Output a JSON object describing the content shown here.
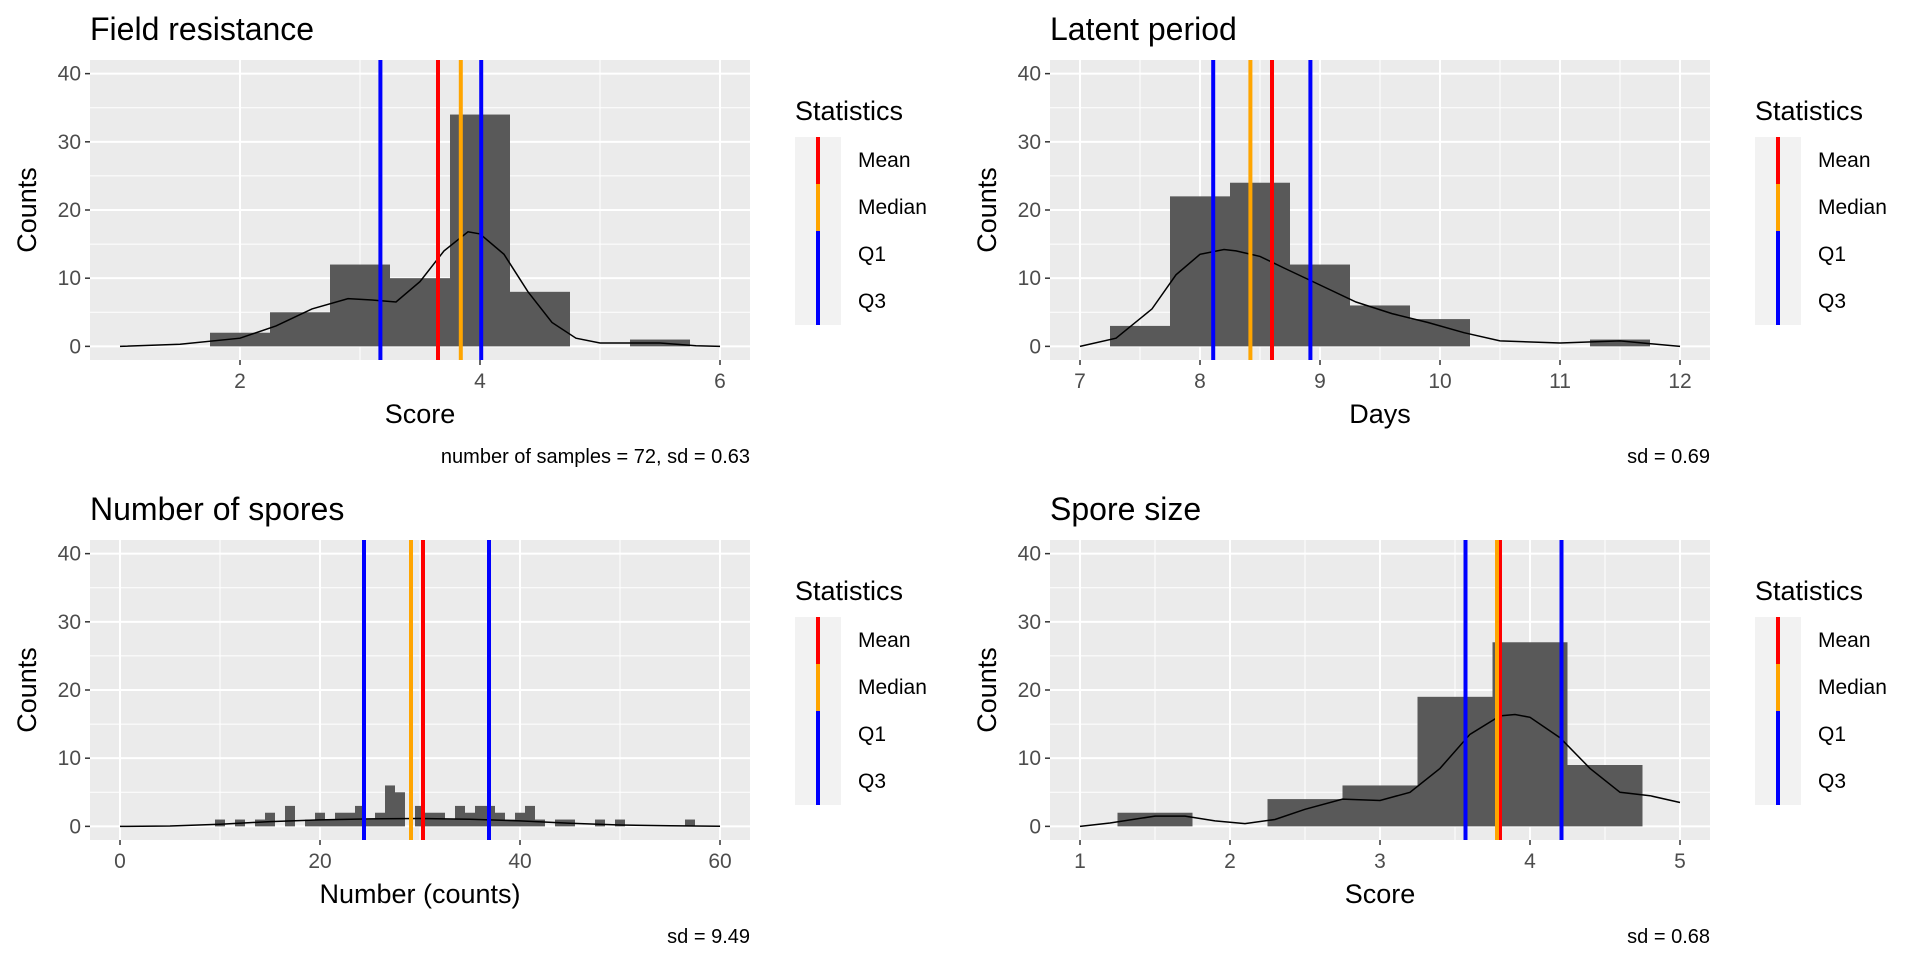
{
  "colors": {
    "panel_bg": "#ebebeb",
    "grid": "#ffffff",
    "bar": "#595959",
    "density": "#000000",
    "mean": "#ff0000",
    "median": "#ffa500",
    "q1": "#0000ff",
    "q3": "#0000ff"
  },
  "chart_data": [
    {
      "type": "histogram",
      "title": "Field resistance",
      "xlabel": "Score",
      "ylabel": "Counts",
      "caption": "number of samples = 72, sd = 0.63",
      "xlim": [
        0.75,
        6.25
      ],
      "ylim": [
        -2,
        42
      ],
      "xticks": [
        2,
        4,
        6
      ],
      "yticks": [
        0,
        10,
        20,
        30,
        40
      ],
      "bins": [
        {
          "x0": 1.75,
          "x1": 2.25,
          "count": 2
        },
        {
          "x0": 2.25,
          "x1": 2.75,
          "count": 5
        },
        {
          "x0": 2.75,
          "x1": 3.25,
          "count": 12
        },
        {
          "x0": 3.25,
          "x1": 3.75,
          "count": 10
        },
        {
          "x0": 3.75,
          "x1": 4.25,
          "count": 34
        },
        {
          "x0": 4.25,
          "x1": 4.75,
          "count": 8
        },
        {
          "x0": 5.25,
          "x1": 5.75,
          "count": 1
        }
      ],
      "density": {
        "x": [
          1,
          1.5,
          2,
          2.3,
          2.6,
          2.9,
          3.1,
          3.3,
          3.5,
          3.7,
          3.9,
          4.0,
          4.2,
          4.4,
          4.6,
          4.8,
          5.0,
          5.2,
          5.5,
          5.8,
          6
        ],
        "y": [
          0,
          0.3,
          1.2,
          3.0,
          5.5,
          7.0,
          6.8,
          6.5,
          9.5,
          14.0,
          16.8,
          16.5,
          13.5,
          8.0,
          3.5,
          1.2,
          0.5,
          0.5,
          0.5,
          0.1,
          0
        ]
      },
      "statistics": [
        {
          "name": "Mean",
          "value": 3.65,
          "color": "#ff0000"
        },
        {
          "name": "Median",
          "value": 3.84,
          "color": "#ffa500"
        },
        {
          "name": "Q1",
          "value": 3.17,
          "color": "#0000ff"
        },
        {
          "name": "Q3",
          "value": 4.01,
          "color": "#0000ff"
        }
      ],
      "legend": {
        "title": "Statistics",
        "entries": [
          "Mean",
          "Median",
          "Q1",
          "Q3"
        ]
      }
    },
    {
      "type": "histogram",
      "title": "Latent period",
      "xlabel": "Days",
      "ylabel": "Counts",
      "caption": "sd = 0.69",
      "xlim": [
        6.75,
        12.25
      ],
      "ylim": [
        -2,
        42
      ],
      "xticks": [
        7,
        8,
        9,
        10,
        11,
        12
      ],
      "yticks": [
        0,
        10,
        20,
        30,
        40
      ],
      "bins": [
        {
          "x0": 7.25,
          "x1": 7.75,
          "count": 3
        },
        {
          "x0": 7.75,
          "x1": 8.25,
          "count": 22
        },
        {
          "x0": 8.25,
          "x1": 8.75,
          "count": 24
        },
        {
          "x0": 8.75,
          "x1": 9.25,
          "count": 12
        },
        {
          "x0": 9.25,
          "x1": 9.75,
          "count": 6
        },
        {
          "x0": 9.75,
          "x1": 10.25,
          "count": 4
        },
        {
          "x0": 11.25,
          "x1": 11.75,
          "count": 1
        }
      ],
      "density": {
        "x": [
          7,
          7.3,
          7.6,
          7.8,
          8.0,
          8.2,
          8.3,
          8.5,
          8.7,
          9.0,
          9.3,
          9.6,
          9.9,
          10.2,
          10.5,
          11,
          11.5,
          12
        ],
        "y": [
          0,
          1.2,
          5.5,
          10.5,
          13.5,
          14.2,
          14.0,
          13.2,
          11.5,
          9.0,
          6.5,
          4.8,
          3.5,
          2.0,
          0.8,
          0.5,
          0.8,
          0
        ]
      },
      "statistics": [
        {
          "name": "Mean",
          "value": 8.6,
          "color": "#ff0000"
        },
        {
          "name": "Median",
          "value": 8.42,
          "color": "#ffa500"
        },
        {
          "name": "Q1",
          "value": 8.11,
          "color": "#0000ff"
        },
        {
          "name": "Q3",
          "value": 8.92,
          "color": "#0000ff"
        }
      ],
      "legend": {
        "title": "Statistics",
        "entries": [
          "Mean",
          "Median",
          "Q1",
          "Q3"
        ]
      }
    },
    {
      "type": "histogram",
      "title": "Number of spores",
      "xlabel": "Number (counts)",
      "ylabel": "Counts",
      "caption": "sd = 9.49",
      "xlim": [
        -3,
        63
      ],
      "ylim": [
        -2,
        42
      ],
      "xticks": [
        0,
        20,
        40,
        60
      ],
      "yticks": [
        0,
        10,
        20,
        30,
        40
      ],
      "bins": [
        {
          "x0": 9.5,
          "x1": 10.5,
          "count": 1
        },
        {
          "x0": 11.5,
          "x1": 12.5,
          "count": 1
        },
        {
          "x0": 13.5,
          "x1": 14.5,
          "count": 1
        },
        {
          "x0": 14.5,
          "x1": 15.5,
          "count": 2
        },
        {
          "x0": 16.5,
          "x1": 17.5,
          "count": 3
        },
        {
          "x0": 18.5,
          "x1": 19.5,
          "count": 1
        },
        {
          "x0": 19.5,
          "x1": 20.5,
          "count": 2
        },
        {
          "x0": 20.5,
          "x1": 21.5,
          "count": 1
        },
        {
          "x0": 21.5,
          "x1": 22.5,
          "count": 2
        },
        {
          "x0": 22.5,
          "x1": 23.5,
          "count": 2
        },
        {
          "x0": 23.5,
          "x1": 24.5,
          "count": 3
        },
        {
          "x0": 24.5,
          "x1": 25.5,
          "count": 1
        },
        {
          "x0": 25.5,
          "x1": 26.5,
          "count": 2
        },
        {
          "x0": 26.5,
          "x1": 27.5,
          "count": 6
        },
        {
          "x0": 27.5,
          "x1": 28.5,
          "count": 5
        },
        {
          "x0": 29.5,
          "x1": 30.5,
          "count": 3
        },
        {
          "x0": 30.5,
          "x1": 31.5,
          "count": 2
        },
        {
          "x0": 31.5,
          "x1": 32.5,
          "count": 2
        },
        {
          "x0": 32.5,
          "x1": 33.5,
          "count": 1
        },
        {
          "x0": 33.5,
          "x1": 34.5,
          "count": 3
        },
        {
          "x0": 34.5,
          "x1": 35.5,
          "count": 2
        },
        {
          "x0": 35.5,
          "x1": 36.5,
          "count": 3
        },
        {
          "x0": 36.5,
          "x1": 37.5,
          "count": 3
        },
        {
          "x0": 37.5,
          "x1": 38.5,
          "count": 2
        },
        {
          "x0": 38.5,
          "x1": 39.5,
          "count": 1
        },
        {
          "x0": 39.5,
          "x1": 40.5,
          "count": 2
        },
        {
          "x0": 40.5,
          "x1": 41.5,
          "count": 3
        },
        {
          "x0": 41.5,
          "x1": 42.5,
          "count": 1
        },
        {
          "x0": 43.5,
          "x1": 44.5,
          "count": 1
        },
        {
          "x0": 44.5,
          "x1": 45.5,
          "count": 1
        },
        {
          "x0": 47.5,
          "x1": 48.5,
          "count": 1
        },
        {
          "x0": 49.5,
          "x1": 50.5,
          "count": 1
        },
        {
          "x0": 56.5,
          "x1": 57.5,
          "count": 1
        }
      ],
      "density": {
        "x": [
          0,
          5,
          10,
          15,
          20,
          25,
          30,
          35,
          40,
          45,
          50,
          55,
          60
        ],
        "y": [
          0,
          0.05,
          0.3,
          0.7,
          0.95,
          1.1,
          1.15,
          1.05,
          0.8,
          0.45,
          0.2,
          0.08,
          0.02
        ]
      },
      "statistics": [
        {
          "name": "Mean",
          "value": 30.3,
          "color": "#ff0000"
        },
        {
          "name": "Median",
          "value": 29.1,
          "color": "#ffa500"
        },
        {
          "name": "Q1",
          "value": 24.4,
          "color": "#0000ff"
        },
        {
          "name": "Q3",
          "value": 36.9,
          "color": "#0000ff"
        }
      ],
      "legend": {
        "title": "Statistics",
        "entries": [
          "Mean",
          "Median",
          "Q1",
          "Q3"
        ]
      }
    },
    {
      "type": "histogram",
      "title": "Spore size",
      "xlabel": "Score",
      "ylabel": "Counts",
      "caption": "sd = 0.68",
      "xlim": [
        0.8,
        5.2
      ],
      "ylim": [
        -2,
        42
      ],
      "xticks": [
        1,
        2,
        3,
        4,
        5
      ],
      "yticks": [
        0,
        10,
        20,
        30,
        40
      ],
      "bins": [
        {
          "x0": 1.25,
          "x1": 1.75,
          "count": 2
        },
        {
          "x0": 2.25,
          "x1": 2.75,
          "count": 4
        },
        {
          "x0": 2.75,
          "x1": 3.25,
          "count": 6
        },
        {
          "x0": 3.25,
          "x1": 3.75,
          "count": 19
        },
        {
          "x0": 3.75,
          "x1": 4.25,
          "count": 27
        },
        {
          "x0": 4.25,
          "x1": 4.75,
          "count": 9
        }
      ],
      "density": {
        "x": [
          1,
          1.2,
          1.5,
          1.7,
          1.9,
          2.1,
          2.3,
          2.5,
          2.75,
          3.0,
          3.2,
          3.4,
          3.6,
          3.8,
          3.9,
          4.0,
          4.2,
          4.4,
          4.6,
          4.8,
          5.0
        ],
        "y": [
          0,
          0.5,
          1.5,
          1.5,
          0.8,
          0.4,
          1.0,
          2.5,
          4.0,
          3.8,
          5.0,
          8.5,
          13.5,
          16.2,
          16.4,
          16.0,
          13.0,
          8.5,
          5.0,
          4.5,
          3.5
        ]
      },
      "statistics": [
        {
          "name": "Mean",
          "value": 3.8,
          "color": "#ff0000"
        },
        {
          "name": "Median",
          "value": 3.78,
          "color": "#ffa500"
        },
        {
          "name": "Q1",
          "value": 3.57,
          "color": "#0000ff"
        },
        {
          "name": "Q3",
          "value": 4.21,
          "color": "#0000ff"
        }
      ],
      "legend": {
        "title": "Statistics",
        "entries": [
          "Mean",
          "Median",
          "Q1",
          "Q3"
        ]
      }
    }
  ]
}
